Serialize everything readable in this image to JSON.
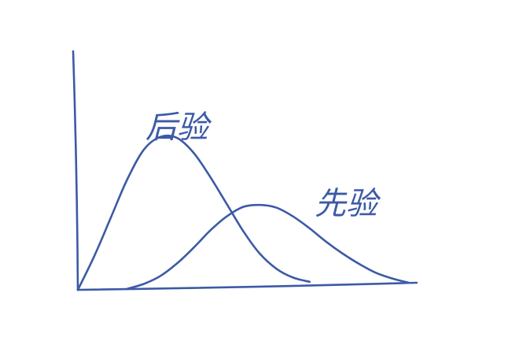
{
  "chart_data": {
    "type": "line",
    "title": "",
    "xlabel": "",
    "ylabel": "",
    "grid": false,
    "legend": "none",
    "style": "hand-drawn sketch",
    "line_color": "#3c5aa6",
    "series": [
      {
        "name": "后验",
        "x": [
          0.0,
          0.05,
          0.1,
          0.15,
          0.2,
          0.25,
          0.3,
          0.35,
          0.4,
          0.45,
          0.5,
          0.55,
          0.6,
          0.65,
          0.7
        ],
        "y": [
          0.0,
          0.22,
          0.47,
          0.72,
          0.91,
          0.99,
          0.98,
          0.88,
          0.72,
          0.54,
          0.36,
          0.21,
          0.11,
          0.05,
          0.02
        ]
      },
      {
        "name": "先验",
        "x": [
          0.15,
          0.2,
          0.25,
          0.3,
          0.35,
          0.4,
          0.45,
          0.5,
          0.55,
          0.6,
          0.65,
          0.7,
          0.75,
          0.8,
          0.85,
          0.9,
          0.95,
          1.0
        ],
        "y": [
          0.0,
          0.03,
          0.08,
          0.16,
          0.26,
          0.37,
          0.46,
          0.52,
          0.53,
          0.51,
          0.45,
          0.37,
          0.28,
          0.2,
          0.13,
          0.07,
          0.03,
          0.0
        ]
      }
    ]
  }
}
